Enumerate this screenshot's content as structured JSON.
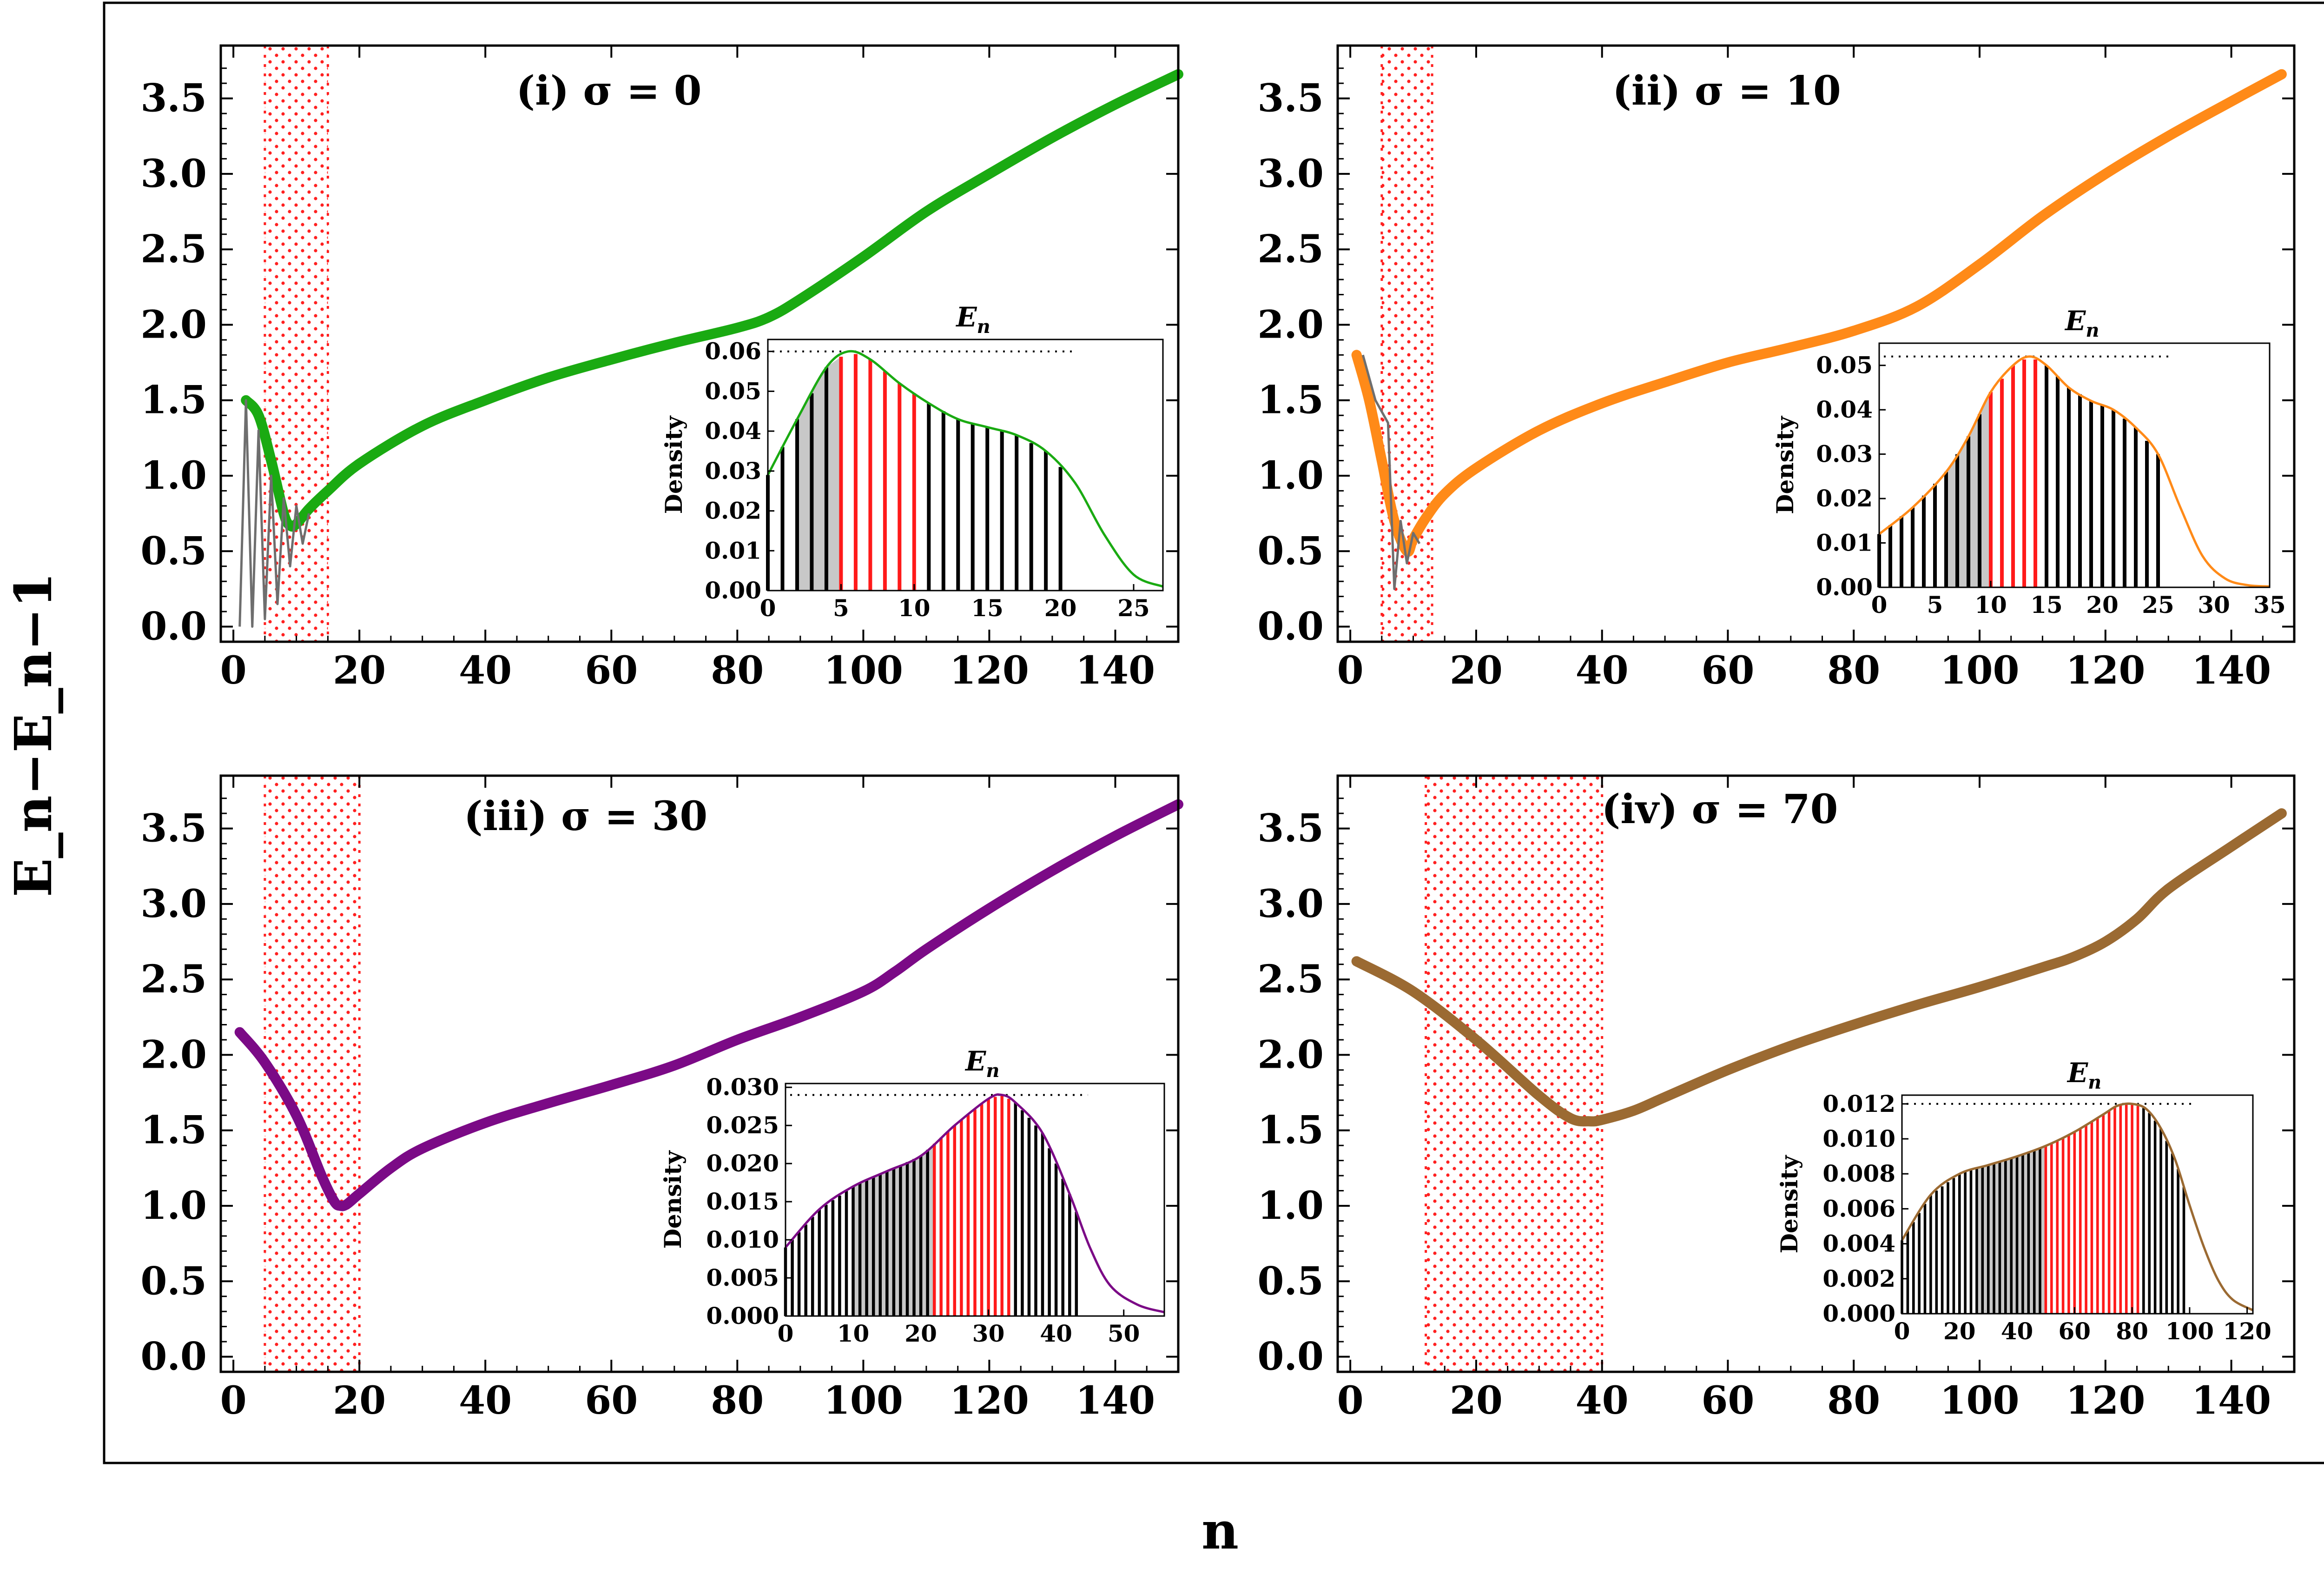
{
  "figure": {
    "xlabel": "n",
    "ylabel": "E_n−E_n−1"
  },
  "chart_data": [
    {
      "type": "line",
      "id": "panel-i",
      "title": "(i) σ = 0",
      "xlim": [
        -2,
        150
      ],
      "ylim": [
        -0.1,
        3.85
      ],
      "xticks": [
        0,
        20,
        40,
        60,
        80,
        100,
        120,
        140
      ],
      "yticks": [
        0.0,
        0.5,
        1.0,
        1.5,
        2.0,
        2.5,
        3.0,
        3.5
      ],
      "color": "#1aaa12",
      "band": [
        5,
        15
      ],
      "series": [
        {
          "name": "smooth",
          "x": [
            2,
            4,
            6,
            8,
            9,
            10,
            12,
            15,
            20,
            30,
            40,
            50,
            60,
            70,
            80,
            85,
            90,
            100,
            110,
            120,
            130,
            140,
            150
          ],
          "y": [
            1.5,
            1.4,
            1.1,
            0.75,
            0.67,
            0.68,
            0.78,
            0.9,
            1.08,
            1.33,
            1.5,
            1.65,
            1.77,
            1.88,
            1.98,
            2.05,
            2.17,
            2.45,
            2.75,
            3.0,
            3.24,
            3.46,
            3.66
          ]
        },
        {
          "name": "oscillating",
          "x": [
            1,
            2,
            3,
            4,
            5,
            6,
            7,
            8,
            9,
            10,
            11,
            12
          ],
          "y": [
            0.0,
            1.5,
            0.0,
            1.3,
            0.05,
            1.0,
            0.15,
            0.85,
            0.4,
            0.8,
            0.55,
            0.75
          ]
        }
      ],
      "inset": {
        "title": "E_n",
        "ylabel": "Density",
        "xlim": [
          0,
          27
        ],
        "ylim": [
          0,
          0.063
        ],
        "xticks": [
          0,
          5,
          10,
          15,
          20,
          25
        ],
        "ytick_labels": [
          "0.00",
          "0.01",
          "0.02",
          "0.03",
          "0.04",
          "0.05",
          "0.06"
        ],
        "ytick_values": [
          0.0,
          0.01,
          0.02,
          0.03,
          0.04,
          0.05,
          0.06
        ],
        "peak": 0.06,
        "curve_x": [
          0,
          2,
          4,
          5.5,
          7,
          9,
          11,
          13,
          15,
          17,
          19,
          21,
          23,
          25,
          27
        ],
        "curve_y": [
          0.029,
          0.043,
          0.056,
          0.06,
          0.058,
          0.052,
          0.047,
          0.043,
          0.041,
          0.039,
          0.035,
          0.027,
          0.014,
          0.004,
          0.001
        ],
        "bars_max": 20,
        "gray_range": [
          2,
          5
        ],
        "red_range": [
          5,
          10
        ]
      }
    },
    {
      "type": "line",
      "id": "panel-ii",
      "title": "(ii) σ = 10",
      "xlim": [
        -2,
        150
      ],
      "ylim": [
        -0.1,
        3.85
      ],
      "xticks": [
        0,
        20,
        40,
        60,
        80,
        100,
        120,
        140
      ],
      "yticks": [
        0.0,
        0.5,
        1.0,
        1.5,
        2.0,
        2.5,
        3.0,
        3.5
      ],
      "color": "#ff8a18",
      "band": [
        5,
        13
      ],
      "series": [
        {
          "name": "smooth",
          "x": [
            1,
            3,
            5,
            7,
            9,
            10,
            12,
            15,
            20,
            30,
            40,
            50,
            60,
            70,
            80,
            90,
            100,
            110,
            120,
            130,
            140,
            148
          ],
          "y": [
            1.8,
            1.5,
            1.1,
            0.7,
            0.5,
            0.58,
            0.72,
            0.88,
            1.05,
            1.3,
            1.48,
            1.62,
            1.75,
            1.85,
            1.96,
            2.12,
            2.4,
            2.72,
            3.0,
            3.25,
            3.48,
            3.66
          ]
        },
        {
          "name": "oscillating",
          "x": [
            2,
            4,
            6,
            7,
            8,
            9,
            10,
            11
          ],
          "y": [
            1.8,
            1.5,
            1.35,
            0.25,
            0.7,
            0.42,
            0.62,
            0.55
          ]
        }
      ],
      "inset": {
        "title": "E_n",
        "ylabel": "Density",
        "xlim": [
          0,
          35
        ],
        "ylim": [
          0,
          0.055
        ],
        "xticks": [
          0,
          5,
          10,
          15,
          20,
          25,
          30,
          35
        ],
        "ytick_labels": [
          "0.00",
          "0.01",
          "0.02",
          "0.03",
          "0.04",
          "0.05"
        ],
        "ytick_values": [
          0.0,
          0.01,
          0.02,
          0.03,
          0.04,
          0.05
        ],
        "peak": 0.052,
        "curve_x": [
          0,
          3,
          6,
          8,
          10,
          12,
          13.5,
          15,
          17,
          19,
          21,
          23,
          25,
          27,
          29,
          31,
          33,
          35
        ],
        "curve_y": [
          0.012,
          0.018,
          0.026,
          0.034,
          0.044,
          0.05,
          0.052,
          0.05,
          0.045,
          0.042,
          0.04,
          0.036,
          0.03,
          0.018,
          0.007,
          0.002,
          0.0005,
          0.0002
        ],
        "bars_max": 25,
        "gray_range": [
          6,
          10
        ],
        "red_range": [
          10,
          14
        ]
      }
    },
    {
      "type": "line",
      "id": "panel-iii",
      "title": "(iii) σ = 30",
      "xlim": [
        -2,
        150
      ],
      "ylim": [
        -0.1,
        3.85
      ],
      "xticks": [
        0,
        20,
        40,
        60,
        80,
        100,
        120,
        140
      ],
      "yticks": [
        0.0,
        0.5,
        1.0,
        1.5,
        2.0,
        2.5,
        3.0,
        3.5
      ],
      "color": "#7b0a86",
      "band": [
        5,
        20
      ],
      "series": [
        {
          "name": "smooth",
          "x": [
            1,
            5,
            10,
            14,
            16,
            17,
            18,
            20,
            25,
            30,
            40,
            50,
            60,
            70,
            80,
            90,
            100,
            105,
            110,
            120,
            130,
            140,
            150
          ],
          "y": [
            2.15,
            1.95,
            1.6,
            1.2,
            1.03,
            1.0,
            1.01,
            1.08,
            1.25,
            1.38,
            1.55,
            1.68,
            1.8,
            1.93,
            2.1,
            2.25,
            2.42,
            2.55,
            2.7,
            2.97,
            3.22,
            3.45,
            3.66
          ]
        }
      ],
      "inset": {
        "title": "E_n",
        "ylabel": "Density",
        "xlim": [
          0,
          56
        ],
        "ylim": [
          0,
          0.0305
        ],
        "xticks": [
          0,
          10,
          20,
          30,
          40,
          50
        ],
        "ytick_labels": [
          "0.000",
          "0.005",
          "0.010",
          "0.015",
          "0.020",
          "0.025",
          "0.030"
        ],
        "ytick_values": [
          0.0,
          0.005,
          0.01,
          0.015,
          0.02,
          0.025,
          0.03
        ],
        "peak": 0.029,
        "curve_x": [
          0,
          5,
          10,
          15,
          20,
          25,
          30,
          32,
          34,
          38,
          42,
          45,
          48,
          52,
          56
        ],
        "curve_y": [
          0.009,
          0.014,
          0.017,
          0.019,
          0.021,
          0.025,
          0.0285,
          0.029,
          0.028,
          0.024,
          0.016,
          0.009,
          0.004,
          0.0015,
          0.0005
        ],
        "bars_max": 43,
        "gray_range": [
          10,
          22
        ],
        "red_range": [
          22,
          33
        ]
      }
    },
    {
      "type": "line",
      "id": "panel-iv",
      "title": "(iv) σ = 70",
      "xlim": [
        -2,
        150
      ],
      "ylim": [
        -0.1,
        3.85
      ],
      "xticks": [
        0,
        20,
        40,
        60,
        80,
        100,
        120,
        140
      ],
      "yticks": [
        0.0,
        0.5,
        1.0,
        1.5,
        2.0,
        2.5,
        3.0,
        3.5
      ],
      "color": "#9b6a32",
      "band": [
        12,
        40
      ],
      "series": [
        {
          "name": "smooth",
          "x": [
            1,
            10,
            20,
            30,
            35,
            38,
            40,
            45,
            50,
            60,
            70,
            80,
            90,
            100,
            110,
            115,
            120,
            125,
            130,
            140,
            148
          ],
          "y": [
            2.62,
            2.42,
            2.1,
            1.73,
            1.58,
            1.56,
            1.57,
            1.63,
            1.72,
            1.9,
            2.06,
            2.2,
            2.33,
            2.45,
            2.58,
            2.65,
            2.75,
            2.9,
            3.1,
            3.38,
            3.6
          ]
        }
      ],
      "inset": {
        "title": "E_n",
        "ylabel": "Density",
        "xlim": [
          0,
          122
        ],
        "ylim": [
          0,
          0.0125
        ],
        "xticks": [
          0,
          20,
          40,
          60,
          80,
          100,
          120
        ],
        "ytick_labels": [
          "0.000",
          "0.002",
          "0.004",
          "0.006",
          "0.008",
          "0.010",
          "0.012"
        ],
        "ytick_values": [
          0.0,
          0.002,
          0.004,
          0.006,
          0.008,
          0.01,
          0.012
        ],
        "peak": 0.012,
        "curve_x": [
          0,
          10,
          20,
          30,
          40,
          50,
          60,
          70,
          75,
          80,
          85,
          90,
          95,
          100,
          105,
          110,
          115,
          122
        ],
        "curve_y": [
          0.0042,
          0.0068,
          0.008,
          0.0085,
          0.009,
          0.0096,
          0.0104,
          0.0114,
          0.0119,
          0.012,
          0.0117,
          0.0106,
          0.0088,
          0.0062,
          0.0038,
          0.0019,
          0.0008,
          0.0002
        ],
        "bars_max": 98,
        "gray_range": [
          26,
          50
        ],
        "red_range": [
          50,
          83
        ]
      }
    }
  ]
}
